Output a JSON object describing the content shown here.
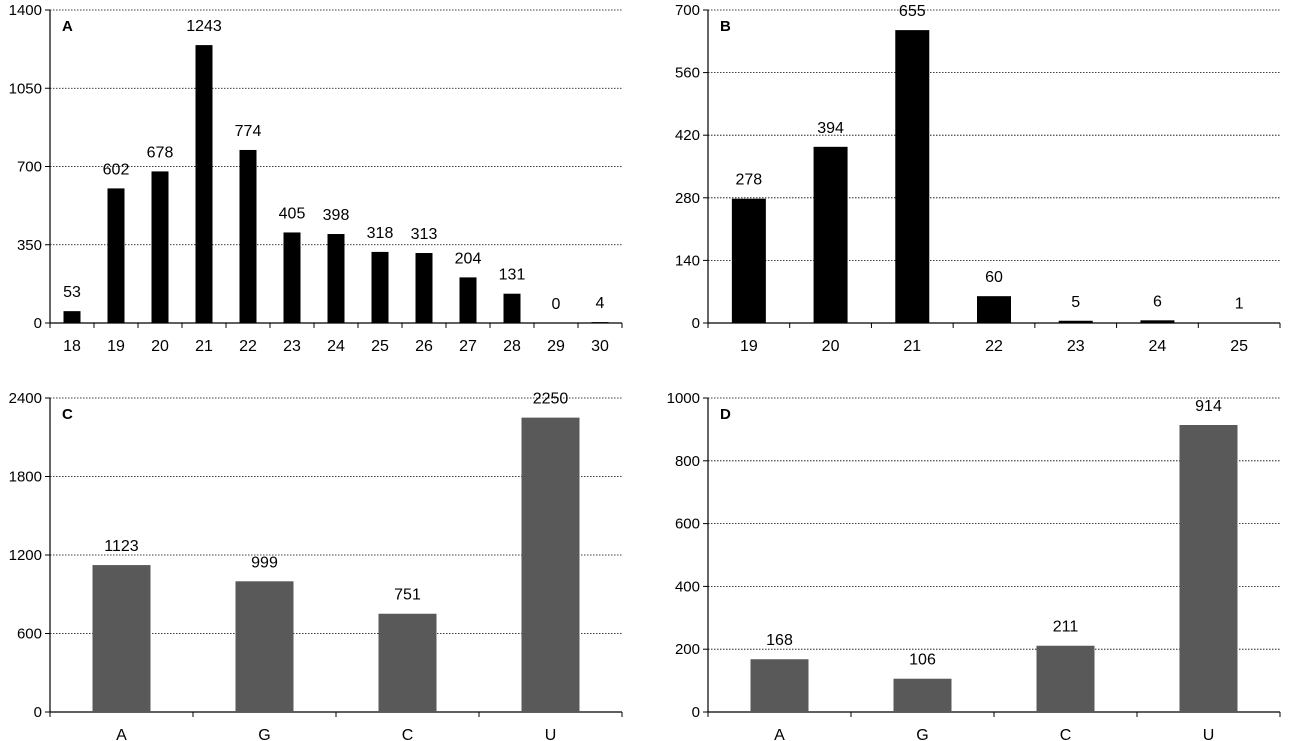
{
  "chart_data": [
    {
      "panel": "A",
      "type": "bar",
      "categories": [
        "18",
        "19",
        "20",
        "21",
        "22",
        "23",
        "24",
        "25",
        "26",
        "27",
        "28",
        "29",
        "30"
      ],
      "values": [
        53,
        602,
        678,
        1243,
        774,
        405,
        398,
        318,
        313,
        204,
        131,
        0,
        4
      ],
      "data_labels": [
        "53",
        "602",
        "678",
        "1243",
        "774",
        "405",
        "398",
        "318",
        "313",
        "204",
        "131",
        "0",
        "4"
      ],
      "ylim": [
        0,
        1400
      ],
      "yticks": [
        "0",
        "350",
        "700",
        "1050",
        "1400"
      ],
      "bar_color": "#000000",
      "grid": "horizontal dotted",
      "xlabel": "",
      "ylabel": ""
    },
    {
      "panel": "B",
      "type": "bar",
      "categories": [
        "19",
        "20",
        "21",
        "22",
        "23",
        "24",
        "25"
      ],
      "values": [
        278,
        394,
        655,
        60,
        5,
        6,
        1
      ],
      "data_labels": [
        "278",
        "394",
        "655",
        "60",
        "5",
        "6",
        "1"
      ],
      "ylim": [
        0,
        700
      ],
      "yticks": [
        "0",
        "140",
        "280",
        "420",
        "560",
        "700"
      ],
      "bar_color": "#000000",
      "grid": "horizontal dotted",
      "xlabel": "",
      "ylabel": ""
    },
    {
      "panel": "C",
      "type": "bar",
      "categories": [
        "A",
        "G",
        "C",
        "U"
      ],
      "values": [
        1123,
        999,
        751,
        2250
      ],
      "data_labels": [
        "1123",
        "999",
        "751",
        "2250"
      ],
      "ylim": [
        0,
        2400
      ],
      "yticks": [
        "0",
        "600",
        "1200",
        "1800",
        "2400"
      ],
      "bar_color": "#595959",
      "grid": "horizontal dotted",
      "xlabel": "",
      "ylabel": ""
    },
    {
      "panel": "D",
      "type": "bar",
      "categories": [
        "A",
        "G",
        "C",
        "U"
      ],
      "values": [
        168,
        106,
        211,
        914
      ],
      "data_labels": [
        "168",
        "106",
        "211",
        "914"
      ],
      "ylim": [
        0,
        1000
      ],
      "yticks": [
        "0",
        "200",
        "400",
        "600",
        "800",
        "1000"
      ],
      "bar_color": "#595959",
      "grid": "horizontal dotted",
      "xlabel": "",
      "ylabel": ""
    }
  ]
}
